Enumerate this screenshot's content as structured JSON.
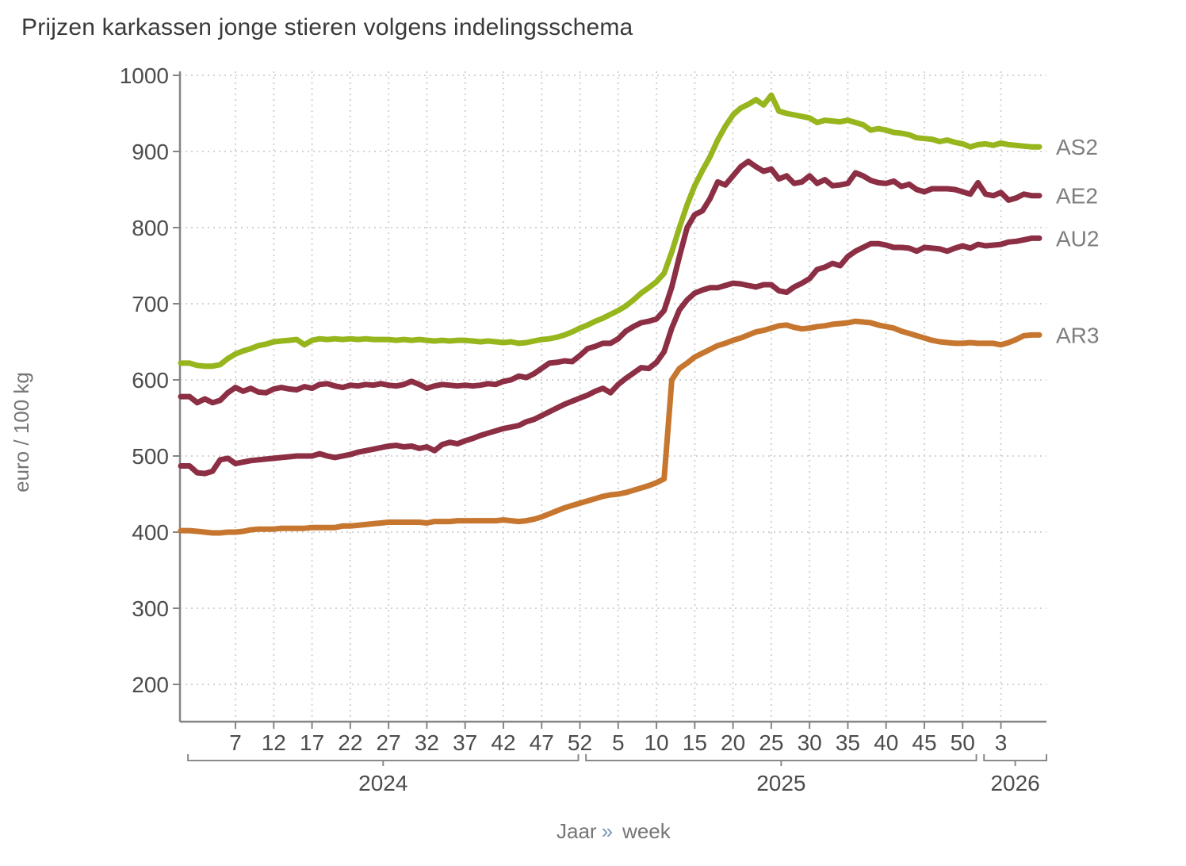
{
  "title": "Prijzen karkassen jonge stieren volgens indelingsschema",
  "y_axis": {
    "title": "euro / 100 kg",
    "tick_labels": [
      "200",
      "300",
      "400",
      "500",
      "600",
      "700",
      "800",
      "900",
      "1000"
    ]
  },
  "x_axis": {
    "title_word1": "Jaar",
    "title_separator": "»",
    "title_word2": "week"
  },
  "colors": {
    "title_text": "#3a3a3a",
    "tick_text": "#4c4c4c",
    "axis_line": "#858585",
    "gridline": "#d2d2d2",
    "bracket": "#8a8a8a",
    "year_text": "#4c4c4c",
    "series_label_text": "#7e7e7e",
    "axis_title_text": "#767676",
    "separator_text": "#7d95b5"
  },
  "chart_data": {
    "type": "line",
    "title": "Prijzen karkassen jonge stieren volgens indelingsschema",
    "xlabel": "Jaar » week",
    "ylabel": "euro / 100 kg",
    "y_ticks": [
      200,
      300,
      400,
      500,
      600,
      700,
      800,
      900,
      1000
    ],
    "ylim": [
      150,
      1010
    ],
    "grid": true,
    "legend_position": "right-end-labels",
    "years": [
      {
        "label": "2024",
        "weeks": 52,
        "tick_weeks": [
          7,
          12,
          17,
          22,
          27,
          32,
          37,
          42,
          47,
          52
        ]
      },
      {
        "label": "2025",
        "weeks": 52,
        "tick_weeks": [
          5,
          10,
          15,
          20,
          25,
          30,
          35,
          40,
          45,
          50
        ]
      },
      {
        "label": "2026",
        "weeks": 7,
        "tick_weeks": [
          3
        ]
      }
    ],
    "series": [
      {
        "name": "AS2",
        "color": "#97b51c",
        "values_by_year": {
          "2024": [
            622,
            619,
            618,
            618,
            620,
            628,
            634,
            638,
            641,
            645,
            647,
            650,
            651,
            652,
            653,
            646,
            652,
            654,
            653,
            654,
            653,
            654,
            653,
            654,
            653,
            653,
            653,
            652,
            653,
            652,
            653,
            652,
            651,
            652,
            651,
            652,
            652,
            651,
            650,
            651,
            650,
            649,
            650,
            648,
            649,
            651,
            653,
            654,
            656,
            659,
            663,
            668
          ],
          "2025": [
            672,
            677,
            681,
            686,
            691,
            697,
            705,
            714,
            721,
            729,
            740,
            768,
            800,
            830,
            855,
            875,
            893,
            915,
            933,
            948,
            957,
            962,
            968,
            961,
            974,
            953,
            950,
            948,
            946,
            944,
            938,
            941,
            940,
            939,
            941,
            938,
            935,
            928,
            930,
            928,
            925,
            924,
            922,
            918,
            917,
            916,
            913,
            915,
            912,
            910,
            906,
            909
          ],
          "2026": [
            910,
            908,
            911,
            909,
            908,
            907,
            906
          ]
        }
      },
      {
        "name": "AE2",
        "color": "#8c2e44",
        "values_by_year": {
          "2024": [
            578,
            570,
            575,
            570,
            573,
            583,
            590,
            585,
            589,
            584,
            583,
            588,
            590,
            588,
            587,
            591,
            589,
            594,
            595,
            592,
            590,
            593,
            592,
            594,
            593,
            595,
            593,
            592,
            594,
            598,
            594,
            589,
            592,
            594,
            593,
            592,
            593,
            592,
            593,
            595,
            594,
            598,
            600,
            605,
            603,
            608,
            615,
            622,
            623,
            625,
            624,
            632
          ],
          "2025": [
            641,
            644,
            648,
            648,
            654,
            664,
            670,
            675,
            677,
            680,
            691,
            722,
            762,
            800,
            817,
            822,
            838,
            860,
            856,
            868,
            880,
            887,
            880,
            874,
            877,
            864,
            868,
            858,
            860,
            868,
            858,
            863,
            855,
            856,
            858,
            872,
            868,
            862,
            859,
            858,
            861,
            854,
            857,
            850,
            847,
            851,
            851,
            851,
            850,
            847,
            844,
            859
          ],
          "2026": [
            844,
            842,
            846,
            836,
            839,
            844,
            842
          ]
        }
      },
      {
        "name": "AU2",
        "color": "#8c2e44",
        "values_by_year": {
          "2024": [
            487,
            478,
            477,
            480,
            495,
            497,
            490,
            492,
            494,
            495,
            496,
            497,
            498,
            499,
            500,
            500,
            500,
            503,
            500,
            498,
            500,
            502,
            505,
            507,
            509,
            511,
            513,
            514,
            512,
            513,
            510,
            512,
            507,
            515,
            518,
            516,
            520,
            523,
            527,
            530,
            533,
            536,
            538,
            540,
            545,
            548,
            553,
            558,
            563,
            568,
            572,
            576
          ],
          "2025": [
            580,
            585,
            589,
            583,
            594,
            602,
            609,
            616,
            615,
            623,
            637,
            668,
            692,
            705,
            714,
            718,
            721,
            721,
            724,
            727,
            726,
            724,
            722,
            725,
            725,
            717,
            715,
            722,
            727,
            733,
            745,
            748,
            753,
            750,
            762,
            769,
            774,
            779,
            779,
            777,
            774,
            774,
            773,
            769,
            774,
            773,
            772,
            769,
            773,
            776,
            773,
            778
          ],
          "2026": [
            776,
            777,
            778,
            781,
            782,
            784,
            786
          ]
        }
      },
      {
        "name": "AR3",
        "color": "#c6762e",
        "values_by_year": {
          "2024": [
            402,
            401,
            400,
            399,
            399,
            400,
            400,
            401,
            403,
            404,
            404,
            404,
            405,
            405,
            405,
            405,
            406,
            406,
            406,
            406,
            408,
            408,
            409,
            410,
            411,
            412,
            413,
            413,
            413,
            413,
            413,
            412,
            414,
            414,
            414,
            415,
            415,
            415,
            415,
            415,
            415,
            416,
            415,
            414,
            415,
            417,
            420,
            424,
            428,
            432,
            435,
            438
          ],
          "2025": [
            441,
            444,
            447,
            449,
            450,
            452,
            455,
            458,
            461,
            465,
            470,
            600,
            615,
            622,
            630,
            635,
            640,
            645,
            648,
            652,
            655,
            659,
            663,
            665,
            668,
            671,
            672,
            669,
            667,
            668,
            670,
            671,
            673,
            674,
            675,
            677,
            676,
            675,
            672,
            670,
            668,
            664,
            661,
            658,
            655,
            652,
            650,
            649,
            648,
            648,
            649,
            648
          ],
          "2026": [
            648,
            648,
            646,
            649,
            653,
            658,
            659
          ]
        }
      }
    ]
  }
}
